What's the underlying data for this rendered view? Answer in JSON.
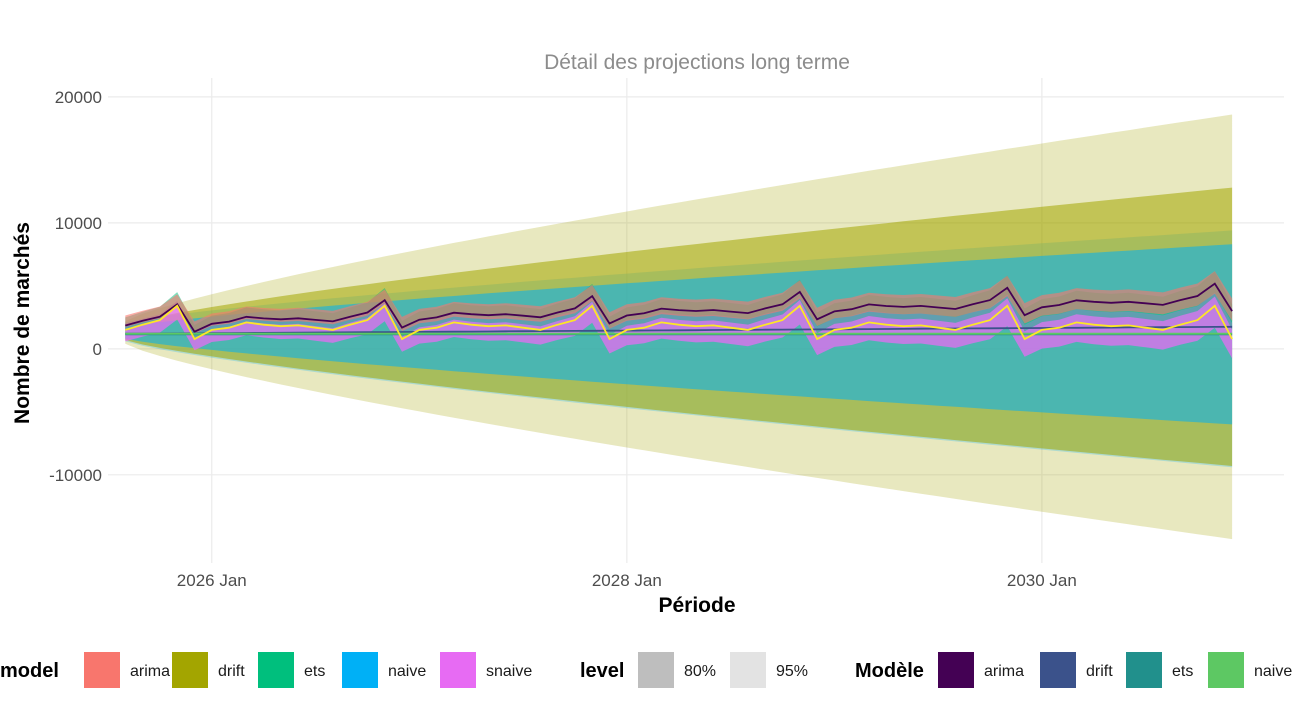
{
  "chart_data": {
    "type": "area",
    "title": "Détail des projections long terme",
    "xlabel": "Période",
    "ylabel": "Nombre de marchés",
    "x_range": [
      "2025-07",
      "2031-03"
    ],
    "ylim": [
      -17000,
      21500
    ],
    "grid": true,
    "x_ticks": [
      {
        "date": "2026-01",
        "label": "2026 Jan"
      },
      {
        "date": "2028-01",
        "label": "2028 Jan"
      },
      {
        "date": "2030-01",
        "label": "2030 Jan"
      }
    ],
    "y_ticks": [
      {
        "value": 20000,
        "label": "20000"
      },
      {
        "value": 10000,
        "label": "10000"
      },
      {
        "value": 0,
        "label": "0"
      },
      {
        "value": -10000,
        "label": "-10000"
      }
    ],
    "forecast_start": "2025-08",
    "forecast_end": "2030-12",
    "bands": [
      {
        "model": "drift",
        "level": "95",
        "start": [
          2200,
          400
        ],
        "end": [
          18600,
          -15100
        ]
      },
      {
        "model": "naive",
        "level": "95",
        "start": [
          2100,
          600
        ],
        "end": [
          9400,
          -9400
        ]
      },
      {
        "model": "drift",
        "level": "80",
        "start": [
          1900,
          700
        ],
        "end": [
          12800,
          -9300
        ]
      },
      {
        "model": "naive",
        "level": "80",
        "start": [
          1700,
          800
        ],
        "end": [
          8300,
          -6000
        ]
      }
    ],
    "seasonal_pattern": [
      0,
      150,
      500,
      350,
      250,
      300,
      150,
      0,
      350,
      650,
      1600,
      -600
    ],
    "spike_month": 12,
    "series": [
      {
        "name": "arima",
        "base": 1850,
        "trend_per_year": 350,
        "amp": 1.0,
        "spike": 1500
      },
      {
        "name": "drift",
        "base": 1200,
        "trend_per_year": 110,
        "amp": 0,
        "spike": 0
      },
      {
        "name": "ets",
        "base": 1150,
        "trend_per_year": 0,
        "amp": 0,
        "spike": 0
      },
      {
        "name": "naive",
        "base": 1200,
        "trend_per_year": 0,
        "amp": 0,
        "spike": 0
      },
      {
        "name": "snaive",
        "base": 1500,
        "trend_per_year": 0,
        "amp": 1.2,
        "spike": 1300
      }
    ],
    "legend_position": "bottom",
    "legends": [
      {
        "title": "model",
        "items": [
          {
            "label": "arima",
            "color": "#F8766D"
          },
          {
            "label": "drift",
            "color": "#A3A500"
          },
          {
            "label": "ets",
            "color": "#00BF7D"
          },
          {
            "label": "naive",
            "color": "#00B0F6"
          },
          {
            "label": "snaive",
            "color": "#E76BF3"
          }
        ]
      },
      {
        "title": "level",
        "items": [
          {
            "label": "80%",
            "color": "#BEBEBE"
          },
          {
            "label": "95%",
            "color": "#E3E3E3"
          }
        ]
      },
      {
        "title": "Modèle",
        "items": [
          {
            "label": "arima",
            "color": "#440154"
          },
          {
            "label": "drift",
            "color": "#3B528B"
          },
          {
            "label": "ets",
            "color": "#21908C"
          },
          {
            "label": "naive",
            "color": "#5DC863"
          }
        ]
      }
    ]
  }
}
